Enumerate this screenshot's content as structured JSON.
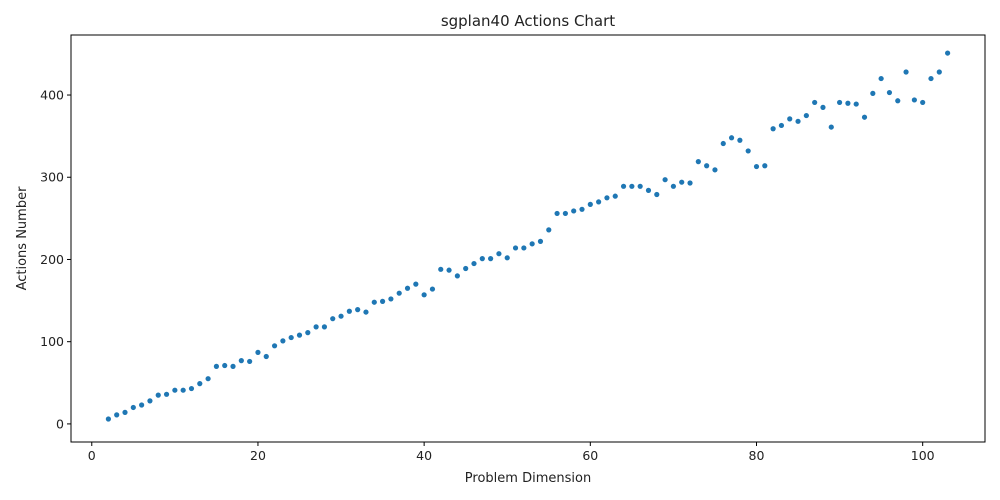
{
  "chart_data": {
    "type": "scatter",
    "title": "sgplan40 Actions Chart",
    "xlabel": "Problem Dimension",
    "ylabel": "Actions Number",
    "xlim": [
      -2.5,
      107.5
    ],
    "ylim": [
      -22,
      473
    ],
    "xticks": [
      0,
      20,
      40,
      60,
      80,
      100
    ],
    "yticks": [
      0,
      100,
      200,
      300,
      400
    ],
    "grid": false,
    "marker_color": "#1f77b4",
    "series": [
      {
        "x": [
          2,
          3,
          4,
          5,
          6,
          7,
          8,
          9,
          10,
          11,
          12,
          13,
          14,
          15,
          16,
          17,
          18,
          19,
          20,
          21,
          22,
          23,
          24,
          25,
          26,
          27,
          28,
          29,
          30,
          31,
          32,
          33,
          34,
          35,
          36,
          37,
          38,
          39,
          40,
          41,
          42,
          43,
          44,
          45,
          46,
          47,
          48,
          49,
          50,
          51,
          52,
          53,
          54,
          55,
          56,
          57,
          58,
          59,
          60,
          61,
          62,
          63,
          64,
          65,
          66,
          67,
          68,
          69,
          70,
          71,
          72,
          73,
          74,
          75,
          76,
          77,
          78,
          79,
          80,
          81,
          82,
          83,
          84,
          85,
          86,
          87,
          88,
          89,
          90,
          91,
          92,
          93,
          94,
          95,
          96,
          97,
          98,
          99,
          100,
          101,
          102,
          103
        ],
        "y": [
          6,
          11,
          14,
          20,
          23,
          28,
          35,
          36,
          41,
          41,
          43,
          49,
          55,
          70,
          71,
          70,
          77,
          76,
          87,
          82,
          95,
          101,
          105,
          108,
          111,
          118,
          118,
          128,
          131,
          137,
          139,
          136,
          148,
          149,
          152,
          159,
          165,
          170,
          157,
          164,
          188,
          187,
          180,
          189,
          195,
          201,
          201,
          207,
          202,
          214,
          214,
          219,
          222,
          236,
          256,
          256,
          259,
          261,
          267,
          270,
          275,
          277,
          289,
          289,
          289,
          284,
          279,
          297,
          289,
          294,
          293,
          319,
          314,
          309,
          341,
          348,
          345,
          332,
          313,
          314,
          359,
          363,
          371,
          368,
          375,
          391,
          385,
          361,
          391,
          390,
          389,
          373,
          402,
          420,
          403,
          393,
          428,
          394,
          391,
          420,
          428,
          451
        ]
      }
    ]
  }
}
